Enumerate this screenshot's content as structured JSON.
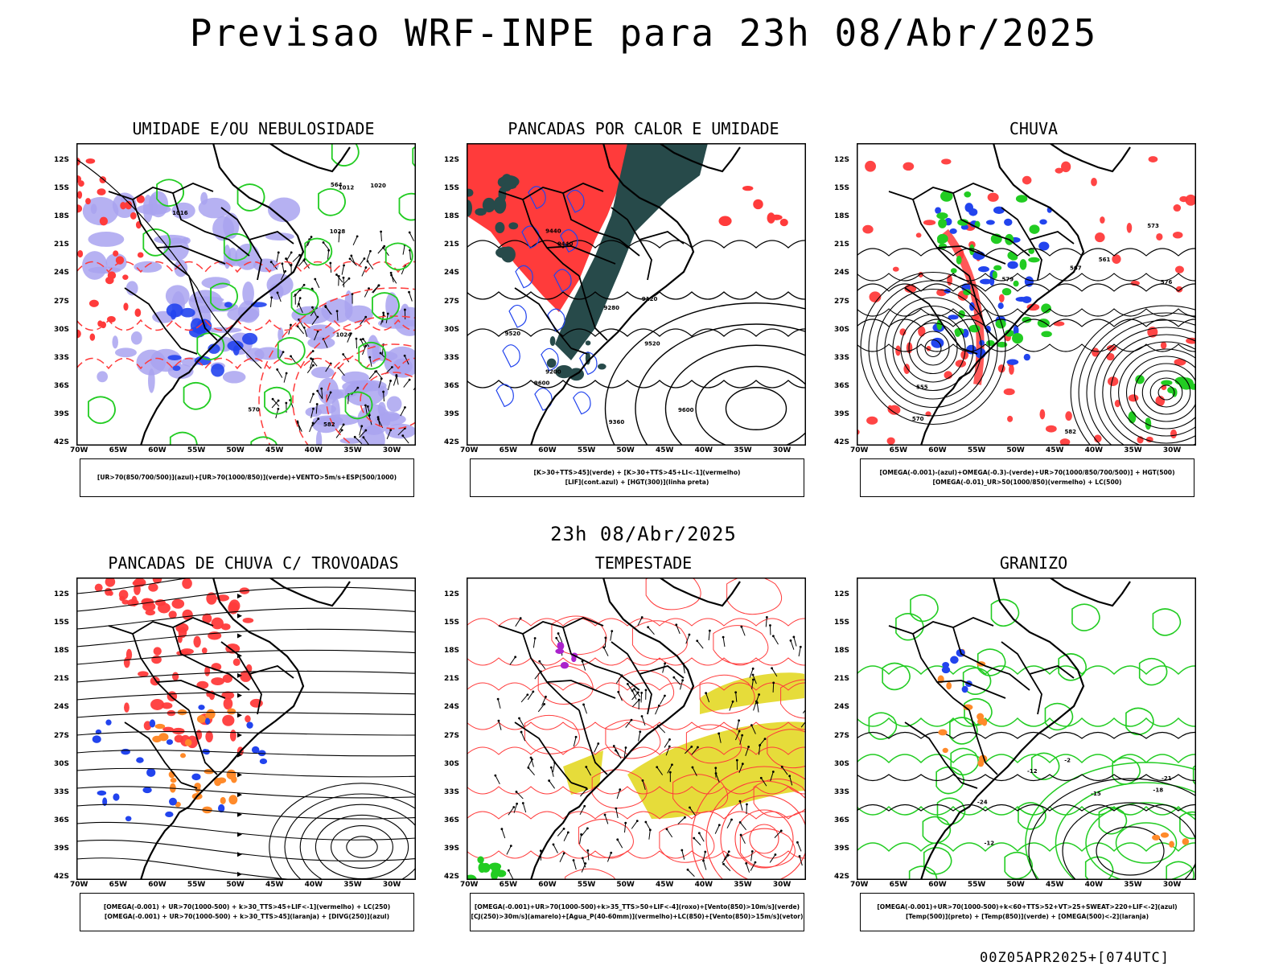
{
  "header": {
    "title": "Previsao WRF-INPE  para 23h 08/Abr/2025"
  },
  "mid_label": "23h 08/Abr/2025",
  "footer": "00Z05APR2025+[074UTC]",
  "axes": {
    "lat_labels": [
      "12S",
      "15S",
      "18S",
      "21S",
      "24S",
      "27S",
      "30S",
      "33S",
      "36S",
      "39S",
      "42S"
    ],
    "lon_labels": [
      "70W",
      "65W",
      "60W",
      "55W",
      "50W",
      "45W",
      "40W",
      "35W",
      "30W"
    ]
  },
  "colors": {
    "red": "#ff3b3b",
    "green": "#22cc22",
    "blue": "#2244ee",
    "lavender": "#a9a3f0",
    "teal": "#274a4a",
    "yellow": "#e6dc3a",
    "orange": "#ff8a2a",
    "purple": "#aa22cc"
  },
  "panels": [
    {
      "title": "UMIDADE E/OU NEBULOSIDADE",
      "legend": [
        "[UR>70(850/700/500)](azul)+[UR>70(1000/850)](verde)+VENTO>5m/s+ESP(500/1000)"
      ],
      "contour_labels": [
        "1012",
        "1016",
        "1020",
        "1024",
        "1028",
        "570",
        "564",
        "582"
      ]
    },
    {
      "title": "PANCADAS POR CALOR E UMIDADE",
      "legend": [
        "[K>30+TTS>45](verde) + [K>30+TTS>45+LI<-1](vermelho)",
        "[LIF](cont.azul) + [HGT(300)](linha preta)"
      ],
      "contour_labels": [
        "9600",
        "9600",
        "9520",
        "9520",
        "9440",
        "9440",
        "9360",
        "9280",
        "9200",
        "9120"
      ]
    },
    {
      "title": "CHUVA",
      "legend": [
        "[OMEGA(-0.001)-(azul)+OMEGA(-0.3)-(verde)+UR>70(1000/850/700/500)] + HGT(500)",
        "[OMEGA(-0.01)_UR>50(1000/850)(vermelho) + LC(500)"
      ],
      "contour_labels": [
        "582",
        "579",
        "576",
        "573",
        "570",
        "567",
        "561",
        "555"
      ]
    },
    {
      "title": "PANCADAS DE CHUVA C/ TROVOADAS",
      "legend": [
        "[OMEGA(-0.001) + UR>70(1000-500) + k>30_TTS>45+LIF<-1](vermelho) + LC(250)",
        "[OMEGA(-0.001) + UR>70(1000-500) + k>30_TTS>45](laranja) + [DIVG(250)](azul)"
      ],
      "contour_labels": []
    },
    {
      "title": "TEMPESTADE",
      "legend": [
        "[OMEGA(-0.001)+UR>70(1000-500)+k>35_TTS>50+LIF<-4](roxo)+[Vento(850)>10m/s](verde)",
        "[CJ(250)>30m/s](amarelo)+[Agua_P(40-60mm)](vermelho)+LC(850)+[Vento(850)>15m/s](vetor)"
      ],
      "contour_labels": []
    },
    {
      "title": "GRANIZO",
      "legend": [
        "[OMEGA(-0.001)+UR>70(1000-500)+k<60+TTS>52+VT>25+SWEAT>220+LIF<-2](azul)",
        "[Temp(500)](preto) + [Temp(850)](verde) + [OMEGA(500)<-2](laranja)"
      ],
      "contour_labels": [
        "-12",
        "-12",
        "-18",
        "-21",
        "-24",
        "-15",
        "-2"
      ]
    }
  ]
}
